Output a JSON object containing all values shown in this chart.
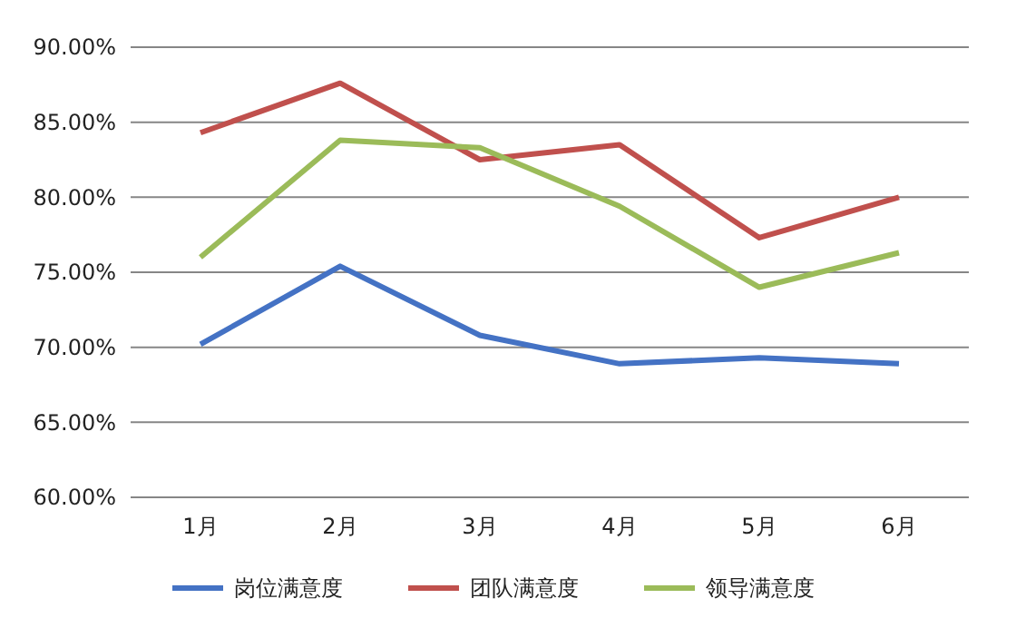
{
  "chart_data": {
    "type": "line",
    "categories": [
      "1月",
      "2月",
      "3月",
      "4月",
      "5月",
      "6月"
    ],
    "series": [
      {
        "name": "岗位满意度",
        "color": "#4472c4",
        "values": [
          70.2,
          75.4,
          70.8,
          68.9,
          69.3,
          68.9
        ]
      },
      {
        "name": "团队满意度",
        "color": "#c0504d",
        "values": [
          84.3,
          87.6,
          82.5,
          83.5,
          77.3,
          80.0
        ]
      },
      {
        "name": "领导满意度",
        "color": "#9bbb59",
        "values": [
          76.0,
          83.8,
          83.3,
          79.4,
          74.0,
          76.3
        ]
      }
    ],
    "ylim": [
      60,
      90
    ],
    "yticks": [
      {
        "value": 60,
        "label": "60.00%"
      },
      {
        "value": 65,
        "label": "65.00%"
      },
      {
        "value": 70,
        "label": "70.00%"
      },
      {
        "value": 75,
        "label": "75.00%"
      },
      {
        "value": 80,
        "label": "80.00%"
      },
      {
        "value": 85,
        "label": "85.00%"
      },
      {
        "value": 90,
        "label": "90.00%"
      }
    ],
    "grid": "y",
    "legend": "bottom",
    "marker": "none",
    "line_style": "solid"
  }
}
